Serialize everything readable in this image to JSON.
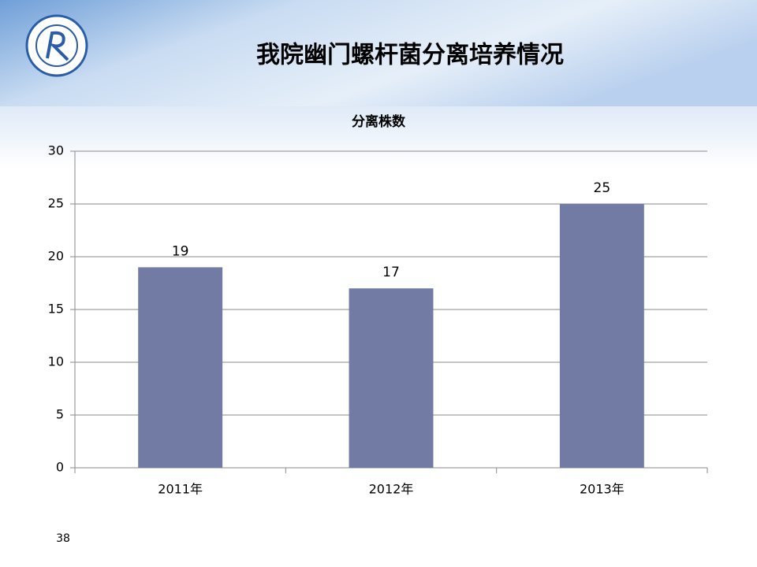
{
  "slide": {
    "title": "我院幽门螺杆菌分离培养情况",
    "page_number": "38"
  },
  "chart_data": {
    "type": "bar",
    "title": "分离株数",
    "categories": [
      "2011年",
      "2012年",
      "2013年"
    ],
    "values": [
      19,
      17,
      25
    ],
    "color": "#717ba3",
    "ylim": [
      0,
      30
    ],
    "yticks": [
      0,
      5,
      10,
      15,
      20,
      25,
      30
    ],
    "grid": true
  }
}
